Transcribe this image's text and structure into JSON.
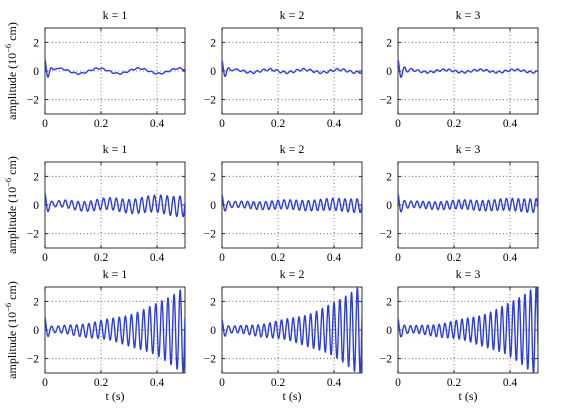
{
  "chart_data": {
    "type": "line",
    "layout": {
      "rows": 3,
      "cols": 3
    },
    "line_color": "#2c3de0",
    "grid": true,
    "xlim": [
      0,
      0.5
    ],
    "ylim": [
      -3,
      3
    ],
    "xticks": [
      0,
      0.2,
      0.4
    ],
    "xtick_labels": [
      "0",
      "0.2",
      "0.4"
    ],
    "yticks": [
      -2,
      0,
      2
    ],
    "ytick_labels": [
      "−2",
      "0",
      "2"
    ],
    "row_ylabels": [
      {
        "prefix": "amplitude (10",
        "sup": "−6",
        "suffix": " cm)"
      },
      {
        "prefix": "amplitude (10",
        "sup": "−6",
        "suffix": " cm)"
      },
      {
        "prefix": "amplitude (10",
        "sup": "−6",
        "suffix": " cm)"
      }
    ],
    "xlabel": "t (s)",
    "panels": [
      {
        "title": "k = 1",
        "row": 0,
        "col": 0,
        "signal": {
          "impulse": 0.9,
          "decay": 70,
          "c1": 0.18,
          "f1": 7,
          "c2": 0.05,
          "f2": 40,
          "growth": 0,
          "c3": 0.0,
          "f3": 45
        }
      },
      {
        "title": "k = 2",
        "row": 0,
        "col": 1,
        "signal": {
          "impulse": 0.75,
          "decay": 60,
          "c1": 0.1,
          "f1": 8,
          "c2": 0.08,
          "f2": 42,
          "growth": 0,
          "c3": 0.0,
          "f3": 45
        }
      },
      {
        "title": "k = 3",
        "row": 0,
        "col": 2,
        "signal": {
          "impulse": 0.8,
          "decay": 55,
          "c1": 0.08,
          "f1": 8,
          "c2": 0.07,
          "f2": 45,
          "growth": 0,
          "c3": 0.0,
          "f3": 45
        }
      },
      {
        "title": "k = 1",
        "row": 1,
        "col": 0,
        "signal": {
          "impulse": 0.9,
          "decay": 70,
          "c1": 0.1,
          "f1": 6,
          "c2": 0.0,
          "f2": 40,
          "growth": 1,
          "c3": 0.25,
          "f3": 44,
          "g": 2.2
        }
      },
      {
        "title": "k = 2",
        "row": 1,
        "col": 1,
        "signal": {
          "impulse": 0.75,
          "decay": 60,
          "c1": 0.05,
          "f1": 6,
          "c2": 0.0,
          "f2": 40,
          "growth": 1,
          "c3": 0.22,
          "f3": 46,
          "g": 1.6
        }
      },
      {
        "title": "k = 3",
        "row": 1,
        "col": 2,
        "signal": {
          "impulse": 0.8,
          "decay": 55,
          "c1": 0.05,
          "f1": 6,
          "c2": 0.0,
          "f2": 40,
          "growth": 1,
          "c3": 0.22,
          "f3": 47,
          "g": 1.6
        }
      },
      {
        "title": "k = 1",
        "row": 2,
        "col": 0,
        "signal": {
          "impulse": 0.9,
          "decay": 70,
          "c1": 0.05,
          "f1": 6,
          "c2": 0.0,
          "f2": 40,
          "growth": 1,
          "c3": 0.22,
          "f3": 46,
          "g": 5.3
        }
      },
      {
        "title": "k = 2",
        "row": 2,
        "col": 1,
        "signal": {
          "impulse": 0.75,
          "decay": 60,
          "c1": 0.05,
          "f1": 6,
          "c2": 0.0,
          "f2": 40,
          "growth": 1,
          "c3": 0.2,
          "f3": 48,
          "g": 5.6
        }
      },
      {
        "title": "k = 3",
        "row": 2,
        "col": 2,
        "signal": {
          "impulse": 0.8,
          "decay": 55,
          "c1": 0.05,
          "f1": 6,
          "c2": 0.0,
          "f2": 40,
          "growth": 1,
          "c3": 0.2,
          "f3": 49,
          "g": 5.6
        }
      }
    ]
  }
}
